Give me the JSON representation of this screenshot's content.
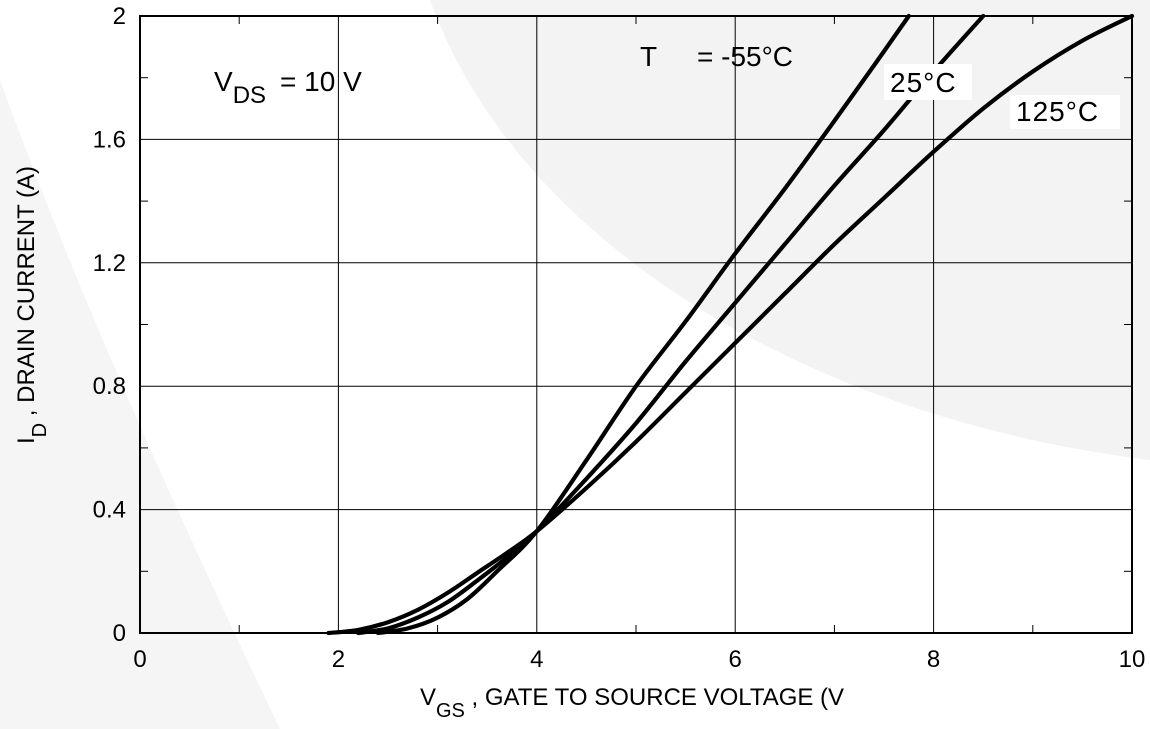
{
  "chart_data": {
    "type": "line",
    "x_axis": {
      "label_main": "V",
      "label_sub": "GS",
      "label_rest": " , GATE TO SOURCE VOLTAGE (V",
      "min": 0,
      "max": 10,
      "ticks": [
        0,
        2,
        4,
        6,
        8,
        10
      ],
      "tick_labels": [
        "0",
        "2",
        "4",
        "6",
        "8",
        "10"
      ],
      "minor_step": 1
    },
    "y_axis": {
      "label_main": "I",
      "label_sub": "D",
      "label_rest": " , DRAIN CURRENT (A)",
      "min": 0,
      "max": 2,
      "ticks": [
        0,
        0.4,
        0.8,
        1.2,
        1.6,
        2
      ],
      "tick_labels": [
        "0",
        "0.4",
        "0.8",
        "1.2",
        "1.6",
        "2"
      ],
      "minor_step": 0.2
    },
    "grid": true,
    "annotations": {
      "vds_main": "V",
      "vds_sub": "DS",
      "vds_rest": "= 10 V",
      "temp_prefix": "T",
      "temp_value": "= -55°C"
    },
    "series": [
      {
        "name": "-55°C",
        "label": "",
        "x": [
          2.4,
          2.7,
          3.0,
          3.3,
          3.6,
          4.0,
          4.5,
          5.0,
          5.5,
          6.0,
          6.5,
          7.0,
          7.4,
          7.75
        ],
        "y": [
          0.0,
          0.015,
          0.05,
          0.11,
          0.2,
          0.33,
          0.56,
          0.8,
          1.01,
          1.23,
          1.44,
          1.66,
          1.84,
          2.0
        ]
      },
      {
        "name": "25°C",
        "label": "25°C",
        "x": [
          2.2,
          2.5,
          2.8,
          3.1,
          3.4,
          3.7,
          4.0,
          4.5,
          5.0,
          5.5,
          6.0,
          6.5,
          7.0,
          7.5,
          8.0,
          8.5
        ],
        "y": [
          0.0,
          0.015,
          0.05,
          0.1,
          0.17,
          0.245,
          0.33,
          0.5,
          0.68,
          0.88,
          1.07,
          1.26,
          1.45,
          1.63,
          1.82,
          2.0
        ]
      },
      {
        "name": "125°C",
        "label": "125°C",
        "x": [
          1.9,
          2.2,
          2.5,
          2.8,
          3.1,
          3.4,
          3.7,
          4.0,
          4.5,
          5.0,
          5.5,
          6.0,
          6.5,
          7.0,
          7.5,
          8.0,
          8.5,
          9.0,
          9.5,
          10.0
        ],
        "y": [
          0.0,
          0.01,
          0.035,
          0.075,
          0.13,
          0.195,
          0.26,
          0.33,
          0.47,
          0.62,
          0.78,
          0.94,
          1.1,
          1.26,
          1.41,
          1.56,
          1.7,
          1.82,
          1.92,
          2.0
        ]
      }
    ]
  }
}
